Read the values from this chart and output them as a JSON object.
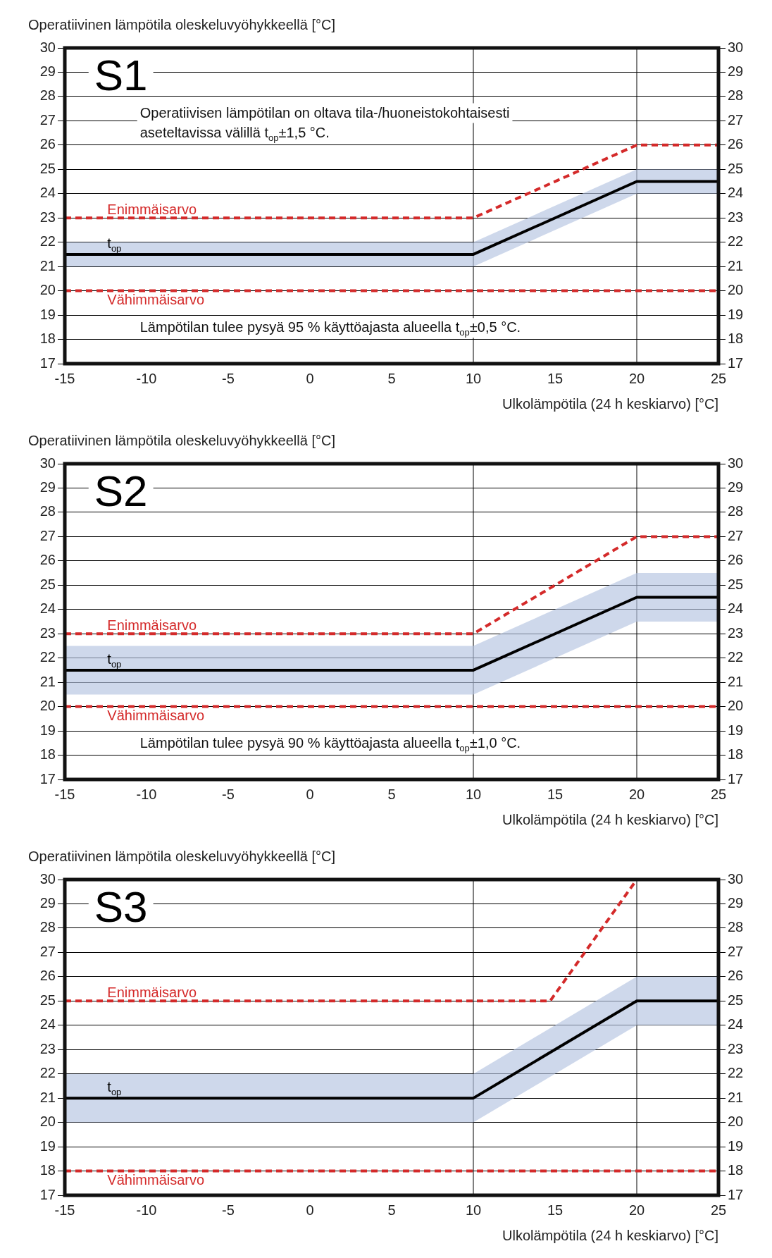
{
  "chart_data": [
    {
      "type": "line",
      "title": "S1",
      "ylabel": "Operatiivinen lämpötila oleskeluvyöhykkeellä [°C]",
      "xlabel": "Ulkolämpötila (24 h keskiarvo) [°C]",
      "xlim": [
        -15,
        25
      ],
      "xticks": [
        -15,
        -10,
        -5,
        0,
        5,
        10,
        15,
        20,
        25
      ],
      "ylim": [
        17,
        30
      ],
      "yticks": [
        17,
        18,
        19,
        20,
        21,
        22,
        23,
        24,
        25,
        26,
        27,
        28,
        29,
        30
      ],
      "y2lim": [
        17,
        30
      ],
      "y2ticks": [
        17,
        18,
        19,
        20,
        21,
        22,
        23,
        24,
        25,
        26,
        27,
        28,
        29,
        30
      ],
      "grid": "y",
      "legend": false,
      "ref_lines": [
        {
          "axis": "x",
          "value": 10,
          "color": "#000000"
        },
        {
          "axis": "x",
          "value": 20,
          "color": "#000000"
        }
      ],
      "annotations": [
        "Operatiivisen lämpötilan on oltava tila-/huoneistokohtaisesti aseteltavissa välillä t$_{op}$±1,5 °C.",
        "Lämpötilan tulee pysyä 95 % käyttöajasta alueella t$_{op}$±0,5 °C."
      ],
      "series": [
        {
          "name": "Enimmäisarvo",
          "color": "#d42a2a",
          "line_style": "dashed",
          "x": [
            -15,
            10,
            20,
            25
          ],
          "values": [
            23,
            23,
            26,
            26
          ]
        },
        {
          "name": "t$_{op}$",
          "color": "#000000",
          "line_style": "solid",
          "x": [
            -15,
            10,
            20,
            25
          ],
          "values": [
            21.5,
            21.5,
            24.5,
            24.5
          ],
          "lower": [
            21,
            21,
            24,
            24
          ],
          "upper": [
            22,
            22,
            25,
            25
          ]
        },
        {
          "name": "Vähimmäisarvo",
          "color": "#d42a2a",
          "line_style": "dashed",
          "x": [
            -15,
            25
          ],
          "values": [
            20,
            20
          ]
        }
      ]
    },
    {
      "type": "line",
      "title": "S2",
      "ylabel": "Operatiivinen lämpötila oleskeluvyöhykkeellä [°C]",
      "xlabel": "Ulkolämpötila (24 h keskiarvo) [°C]",
      "xlim": [
        -15,
        25
      ],
      "xticks": [
        -15,
        -10,
        -5,
        0,
        5,
        10,
        15,
        20,
        25
      ],
      "ylim": [
        17,
        30
      ],
      "yticks": [
        17,
        18,
        19,
        20,
        21,
        22,
        23,
        24,
        25,
        26,
        27,
        28,
        29,
        30
      ],
      "y2lim": [
        17,
        30
      ],
      "y2ticks": [
        17,
        18,
        19,
        20,
        21,
        22,
        23,
        24,
        25,
        26,
        27,
        28,
        29,
        30
      ],
      "grid": "y",
      "legend": false,
      "ref_lines": [
        {
          "axis": "x",
          "value": 10,
          "color": "#000000"
        },
        {
          "axis": "x",
          "value": 20,
          "color": "#000000"
        }
      ],
      "annotations": [
        "Lämpötilan tulee pysyä 90 % käyttöajasta alueella t$_{op}$±1,0 °C."
      ],
      "series": [
        {
          "name": "Enimmäisarvo",
          "color": "#d42a2a",
          "line_style": "dashed",
          "x": [
            -15,
            10,
            20,
            25
          ],
          "values": [
            23,
            23,
            27,
            27
          ]
        },
        {
          "name": "t$_{op}$",
          "color": "#000000",
          "line_style": "solid",
          "x": [
            -15,
            10,
            20,
            25
          ],
          "values": [
            21.5,
            21.5,
            24.5,
            24.5
          ],
          "lower": [
            20.5,
            20.5,
            23.5,
            23.5
          ],
          "upper": [
            22.5,
            22.5,
            25.5,
            25.5
          ]
        },
        {
          "name": "Vähimmäisarvo",
          "color": "#d42a2a",
          "line_style": "dashed",
          "x": [
            -15,
            25
          ],
          "values": [
            20,
            20
          ]
        }
      ]
    },
    {
      "type": "line",
      "title": "S3",
      "ylabel": "Operatiivinen lämpötila oleskeluvyöhykkeellä [°C]",
      "xlabel": "Ulkolämpötila (24 h keskiarvo) [°C]",
      "xlim": [
        -15,
        25
      ],
      "xticks": [
        -15,
        -10,
        -5,
        0,
        5,
        10,
        15,
        20,
        25
      ],
      "ylim": [
        17,
        30
      ],
      "yticks": [
        17,
        18,
        19,
        20,
        21,
        22,
        23,
        24,
        25,
        26,
        27,
        28,
        29,
        30
      ],
      "y2lim": [
        17,
        30
      ],
      "y2ticks": [
        17,
        18,
        19,
        20,
        21,
        22,
        23,
        24,
        25,
        26,
        27,
        28,
        29,
        30
      ],
      "grid": "y",
      "legend": false,
      "ref_lines": [
        {
          "axis": "x",
          "value": 10,
          "color": "#000000"
        },
        {
          "axis": "x",
          "value": 20,
          "color": "#000000"
        }
      ],
      "series": [
        {
          "name": "Enimmäisarvo",
          "color": "#d42a2a",
          "line_style": "dashed",
          "x": [
            -15,
            14.7,
            20
          ],
          "values": [
            25,
            25,
            30
          ]
        },
        {
          "name": "t$_{op}$",
          "color": "#000000",
          "line_style": "solid",
          "x": [
            -15,
            10,
            20,
            25
          ],
          "values": [
            21,
            21,
            25,
            25
          ],
          "lower": [
            20,
            20,
            24,
            24
          ],
          "upper": [
            22,
            22,
            26,
            26
          ]
        },
        {
          "name": "Vähimmäisarvo",
          "color": "#d42a2a",
          "line_style": "dashed",
          "x": [
            -15,
            25
          ],
          "values": [
            18,
            18
          ]
        }
      ]
    }
  ]
}
